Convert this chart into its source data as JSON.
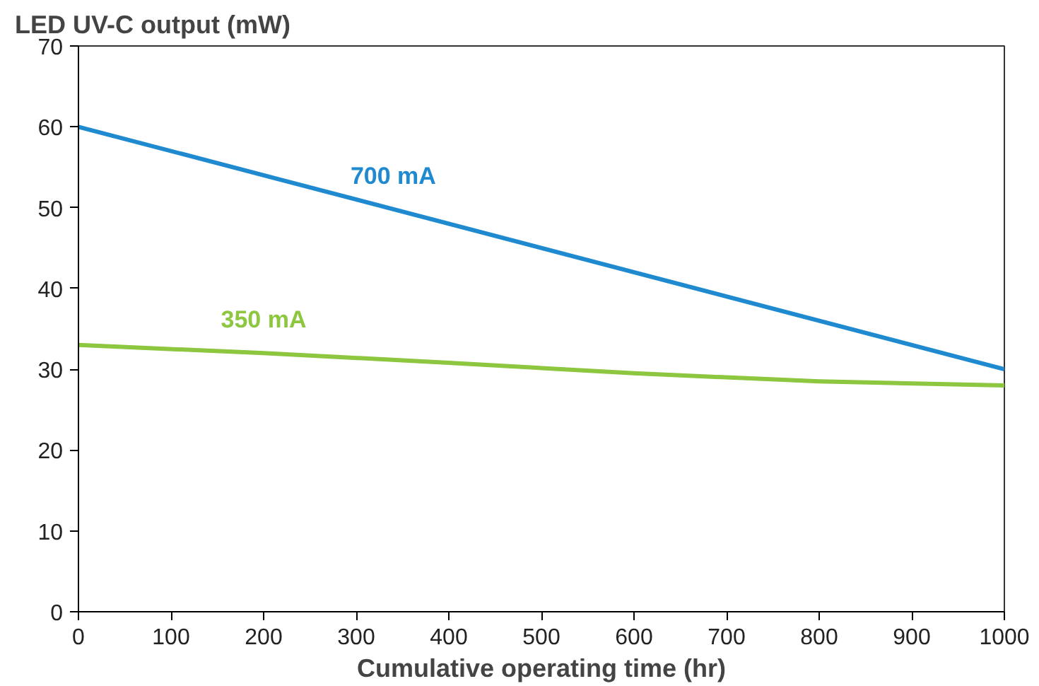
{
  "chart_data": {
    "type": "line",
    "ylabel": "LED UV-C output (mW)",
    "xlabel": "Cumulative operating time (hr)",
    "xlim": [
      0,
      1000
    ],
    "xticks": [
      0,
      100,
      200,
      300,
      400,
      500,
      600,
      700,
      800,
      900,
      1000
    ],
    "ylim": [
      0,
      70
    ],
    "yticks": [
      0,
      10,
      20,
      30,
      40,
      50,
      60,
      70
    ],
    "grid": false,
    "line_style": "solid",
    "series": [
      {
        "name": "700 mA",
        "color": "#1f8ad0",
        "x": [
          0,
          1000
        ],
        "values": [
          60,
          30
        ]
      },
      {
        "name": "350 mA",
        "color": "#8dc63f",
        "x": [
          0,
          200,
          400,
          600,
          800,
          1000
        ],
        "values": [
          33,
          32,
          30.8,
          29.5,
          28.5,
          28
        ]
      }
    ]
  }
}
